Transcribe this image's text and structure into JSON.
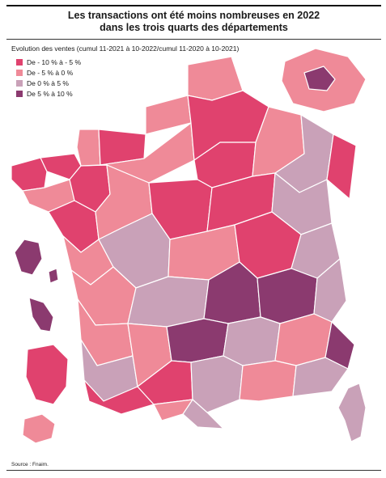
{
  "title_line1": "Les transactions ont été moins nombreuses en 2022",
  "title_line2": "dans les trois quarts des départements",
  "subtitle": "Evolution des ventes  (cumul 11-2021 à 10-2022/cumul 11-2020 à 10-2021)",
  "legend": [
    {
      "label": "De - 10 % à - 5 %",
      "color": "#e0426e"
    },
    {
      "label": "De - 5 % à 0 %",
      "color": "#ef8a98"
    },
    {
      "label": "De 0 % à 5 %",
      "color": "#c9a1b8"
    },
    {
      "label": "De 5 % à 10 %",
      "color": "#8b3a6f"
    }
  ],
  "source": "Source : Fnaim.",
  "colors": {
    "border": "#ffffff",
    "background": "#ffffff"
  }
}
